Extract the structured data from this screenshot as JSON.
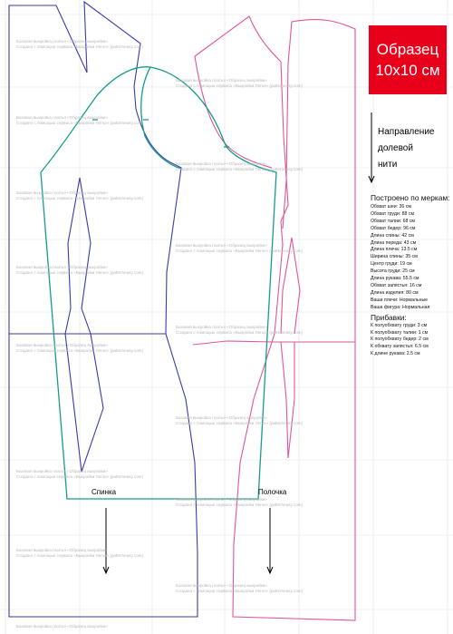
{
  "sample": {
    "line1": "Образец",
    "line2": "10х10 см"
  },
  "grain": {
    "line1": "Направление",
    "line2": "долевой",
    "line3": "нити"
  },
  "measurements": {
    "heading": "Построено по меркам:",
    "items": [
      "Обхват шеи: 36 см",
      "Обхват груди: 88 см",
      "Обхват талии: 68 см",
      "Обхват бедер: 96 см",
      "Длина спины: 42 см",
      "Длина переда: 43 см",
      "Длина плеча: 13.5 см",
      "Ширина спины: 35 см",
      "Центр груди: 19 см",
      "Высота груди: 25 см",
      "Длина рукава: 55.5 см",
      "Обхват запястья: 16 см",
      "Длина изделия: 80 см",
      "Ваши плечи: Нормальные",
      "Ваша фигура: Нормальная"
    ]
  },
  "allowances": {
    "heading": "Прибавки:",
    "items": [
      "К полуобхвату груди: 3 см",
      "К полуобхвату талии: 1 см",
      "К полуобхвату бедер: 2 см",
      "К обхвату запястья: 6.5 см",
      "К длине рукава: 2.5 см"
    ]
  },
  "pieces": {
    "back": "Спинка",
    "front": "Полочка"
  },
  "watermark": {
    "line1": "Базовая выкройка платья «Образец выкройки»",
    "line2": "Создано с помощью сервиса «Выкройки Легко» (patterneasy.com)"
  },
  "colors": {
    "back": "#3b3ba8",
    "front": "#e0569a",
    "sleeve": "#169c8c",
    "sample_box": "#e8001a"
  }
}
